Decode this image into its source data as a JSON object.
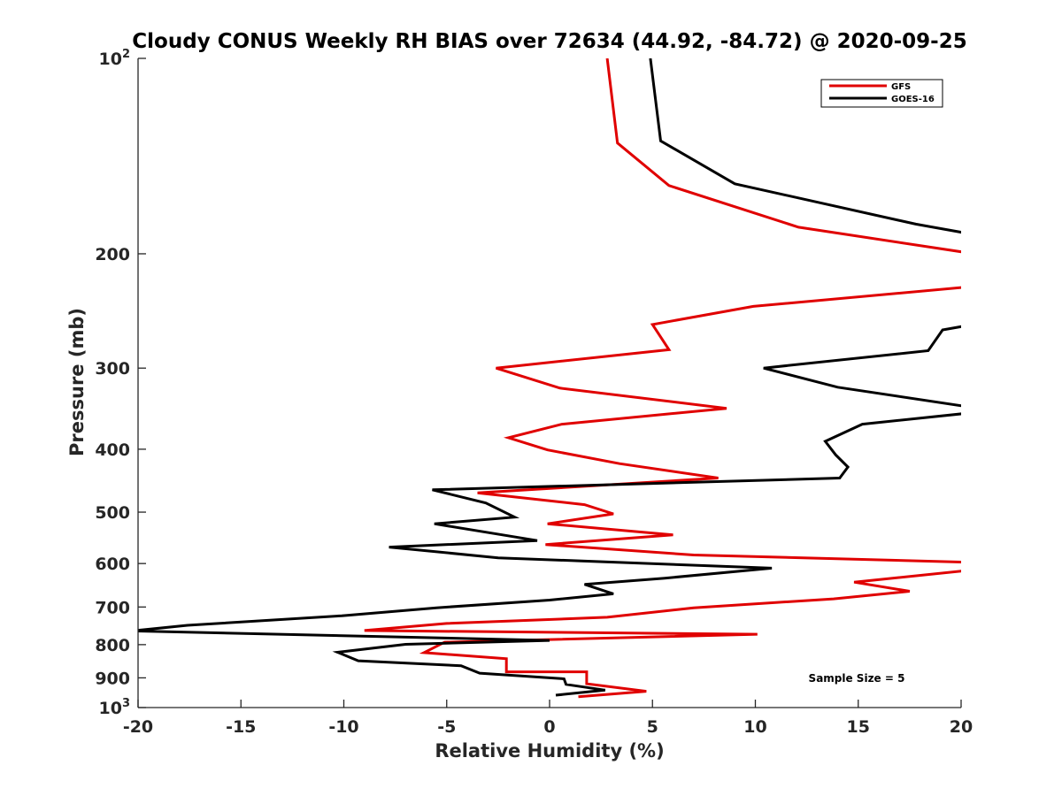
{
  "chart_data": {
    "type": "line",
    "title": "Cloudy CONUS Weekly RH BIAS over 72634 (44.92, -84.72) @ 2020-09-25",
    "xlabel": "Relative Humidity (%)",
    "ylabel": "Pressure (mb)",
    "xlim": [
      -20,
      20
    ],
    "ylim": [
      100,
      1000
    ],
    "yscale": "log",
    "y_reversed": true,
    "x_ticks": [
      {
        "value": -20,
        "label": "-20"
      },
      {
        "value": -15,
        "label": "-15"
      },
      {
        "value": -10,
        "label": "-10"
      },
      {
        "value": -5,
        "label": "-5"
      },
      {
        "value": 0,
        "label": "0"
      },
      {
        "value": 5,
        "label": "5"
      },
      {
        "value": 10,
        "label": "10"
      },
      {
        "value": 15,
        "label": "15"
      },
      {
        "value": 20,
        "label": "20"
      }
    ],
    "y_ticks": [
      {
        "value": 100,
        "base": "10",
        "exp": "2"
      },
      {
        "value": 200,
        "label": "200"
      },
      {
        "value": 300,
        "label": "300"
      },
      {
        "value": 400,
        "label": "400"
      },
      {
        "value": 500,
        "label": "500"
      },
      {
        "value": 600,
        "label": "600"
      },
      {
        "value": 700,
        "label": "700"
      },
      {
        "value": 800,
        "label": "800"
      },
      {
        "value": 900,
        "label": "900"
      },
      {
        "value": 1000,
        "base": "10",
        "exp": "3"
      }
    ],
    "grid": false,
    "legend_position": "top-right",
    "annotation": "Sample Size = 5",
    "series": [
      {
        "name": "GFS",
        "color": "#e00000",
        "points": [
          [
            2.8,
            100
          ],
          [
            3.3,
            135
          ],
          [
            5.8,
            157
          ],
          [
            12.1,
            182
          ],
          [
            20.2,
            199
          ],
          [
            null,
            199
          ],
          [
            20.3,
            225
          ],
          [
            9.9,
            241
          ],
          [
            5.0,
            257
          ],
          [
            5.8,
            281
          ],
          [
            -2.6,
            300
          ],
          [
            0.5,
            322
          ],
          [
            8.6,
            346
          ],
          [
            0.6,
            366
          ],
          [
            -2.0,
            384
          ],
          [
            -0.1,
            401
          ],
          [
            3.4,
            421
          ],
          [
            8.2,
            443
          ],
          [
            -3.5,
            467
          ],
          [
            1.7,
            487
          ],
          [
            3.1,
            503
          ],
          [
            -0.1,
            521
          ],
          [
            6.0,
            542
          ],
          [
            -0.2,
            561
          ],
          [
            7.0,
            582
          ],
          [
            20.2,
            597
          ],
          [
            20.3,
            615
          ],
          [
            14.8,
            641
          ],
          [
            17.5,
            662
          ],
          [
            13.8,
            680
          ],
          [
            7.0,
            702
          ],
          [
            2.8,
            726
          ],
          [
            -5.0,
            742
          ],
          [
            -9.0,
            761
          ],
          [
            10.1,
            771
          ],
          [
            -5.1,
            793
          ],
          [
            -6.1,
            823
          ],
          [
            -2.1,
            841
          ],
          [
            -2.1,
            881
          ],
          [
            1.8,
            881
          ],
          [
            1.8,
            919
          ],
          [
            4.7,
            944
          ],
          [
            1.4,
            962
          ]
        ]
      },
      {
        "name": "GOES-16",
        "color": "#000000",
        "points": [
          [
            4.9,
            100
          ],
          [
            5.4,
            134
          ],
          [
            9.0,
            156
          ],
          [
            17.8,
            180
          ],
          [
            20.3,
            186
          ],
          [
            null,
            186
          ],
          [
            20.3,
            258
          ],
          [
            19.1,
            262
          ],
          [
            18.4,
            282
          ],
          [
            10.4,
            300
          ],
          [
            14.0,
            321
          ],
          [
            20.3,
            344
          ],
          [
            null,
            344
          ],
          [
            20.3,
            352
          ],
          [
            15.2,
            366
          ],
          [
            13.4,
            389
          ],
          [
            13.9,
            408
          ],
          [
            14.5,
            426
          ],
          [
            14.1,
            443
          ],
          [
            -5.7,
            462
          ],
          [
            -3.1,
            484
          ],
          [
            -1.7,
            509
          ],
          [
            -5.6,
            521
          ],
          [
            -0.6,
            553
          ],
          [
            -7.8,
            566
          ],
          [
            -2.5,
            588
          ],
          [
            10.8,
            610
          ],
          [
            5.6,
            632
          ],
          [
            1.7,
            646
          ],
          [
            3.1,
            668
          ],
          [
            0.0,
            683
          ],
          [
            -5.5,
            702
          ],
          [
            -10.1,
            722
          ],
          [
            -17.6,
            747
          ],
          [
            -20.3,
            762
          ],
          [
            0.0,
            788
          ],
          [
            -7.0,
            799
          ],
          [
            -10.3,
            822
          ],
          [
            -9.3,
            847
          ],
          [
            -4.3,
            862
          ],
          [
            -3.4,
            885
          ],
          [
            0.7,
            903
          ],
          [
            0.8,
            921
          ],
          [
            2.7,
            940
          ],
          [
            0.3,
            957
          ]
        ]
      }
    ]
  }
}
